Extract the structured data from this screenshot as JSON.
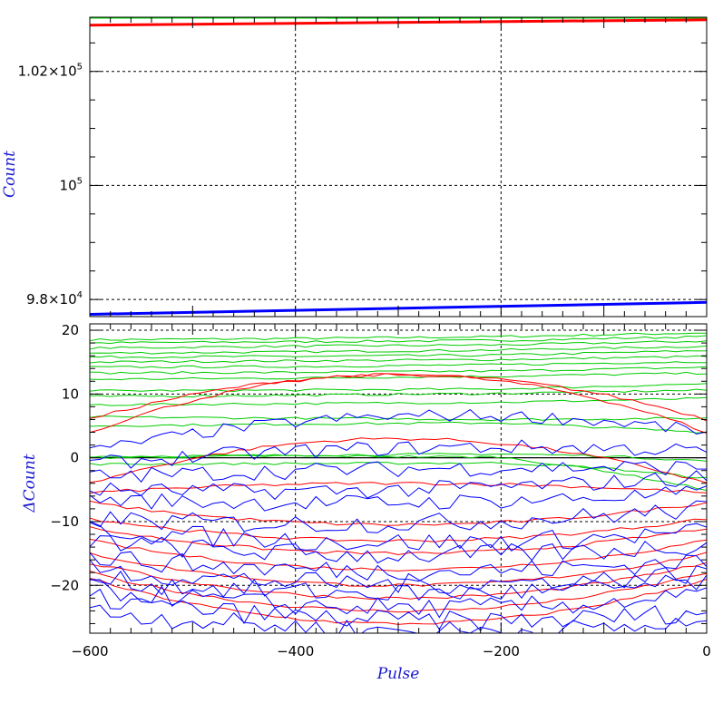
{
  "chart_data": [
    {
      "type": "line",
      "panel": "top",
      "ylabel": "Count",
      "xlim": [
        -600,
        0
      ],
      "ylim": [
        97700,
        102950
      ],
      "grid": true,
      "y_ticks": [
        {
          "value": 98000,
          "label_base": "9.8×10",
          "label_exp": "4"
        },
        {
          "value": 100000,
          "label_base": "10",
          "label_exp": "5"
        },
        {
          "value": 102000,
          "label_base": "1.02×10",
          "label_exp": "5"
        }
      ],
      "series": [
        {
          "color": "#00dd00",
          "x": [
            -600,
            -370
          ],
          "values": [
            102950,
            102950
          ]
        },
        {
          "color": "#00dd00",
          "x": [
            -370,
            0
          ],
          "values": [
            102948,
            102950
          ]
        },
        {
          "color": "#ff0000",
          "x": [
            -600,
            0
          ],
          "values": [
            102810,
            102905
          ]
        },
        {
          "color": "#0000ff",
          "x": [
            -600,
            0
          ],
          "values": [
            97740,
            97950
          ]
        }
      ]
    },
    {
      "type": "line",
      "panel": "bottom",
      "xlabel": "Pulse",
      "ylabel": "ΔCount",
      "xlim": [
        -600,
        0
      ],
      "ylim": [
        -27.5,
        21
      ],
      "grid": true,
      "x_ticks": [
        -600,
        -400,
        -200,
        0
      ],
      "y_ticks": [
        -20,
        -10,
        0,
        10,
        20
      ],
      "series_groups": [
        {
          "color": "#00cc00",
          "kind": "smooth",
          "curves": [
            [
              [
                -600,
                18.5
              ],
              [
                -400,
                18.7
              ],
              [
                -200,
                19.0
              ],
              [
                0,
                19.6
              ]
            ],
            [
              [
                -600,
                18.0
              ],
              [
                -400,
                18.2
              ],
              [
                -200,
                18.4
              ],
              [
                0,
                19.0
              ]
            ],
            [
              [
                -600,
                17.2
              ],
              [
                -400,
                17.5
              ],
              [
                -200,
                17.7
              ],
              [
                0,
                18.3
              ]
            ],
            [
              [
                -600,
                16.4
              ],
              [
                -400,
                16.6
              ],
              [
                -200,
                16.9
              ],
              [
                0,
                17.5
              ]
            ],
            [
              [
                -600,
                15.8
              ],
              [
                -400,
                15.9
              ],
              [
                -200,
                16.1
              ],
              [
                0,
                16.8
              ]
            ],
            [
              [
                -600,
                15.0
              ],
              [
                -400,
                15.2
              ],
              [
                -200,
                15.4
              ],
              [
                0,
                15.9
              ]
            ],
            [
              [
                -600,
                14.2
              ],
              [
                -400,
                14.3
              ],
              [
                -200,
                14.6
              ],
              [
                0,
                15.1
              ]
            ],
            [
              [
                -600,
                13.3
              ],
              [
                -400,
                13.4
              ],
              [
                -200,
                13.6
              ],
              [
                0,
                14.2
              ]
            ],
            [
              [
                -600,
                12.3
              ],
              [
                -400,
                12.5
              ],
              [
                -200,
                12.8
              ],
              [
                0,
                13.3
              ]
            ],
            [
              [
                -600,
                10.5
              ],
              [
                -400,
                10.6
              ],
              [
                -200,
                10.8
              ],
              [
                0,
                11.6
              ]
            ],
            [
              [
                -600,
                9.6
              ],
              [
                -400,
                9.8
              ],
              [
                -200,
                10.1
              ],
              [
                0,
                10.6
              ]
            ],
            [
              [
                -600,
                8.3
              ],
              [
                -400,
                8.5
              ],
              [
                -200,
                8.7
              ],
              [
                0,
                9.3
              ]
            ],
            [
              [
                -600,
                6.4
              ],
              [
                -400,
                6.2
              ],
              [
                -200,
                6.0
              ],
              [
                0,
                6.2
              ]
            ],
            [
              [
                -600,
                5.0
              ],
              [
                -400,
                5.3
              ],
              [
                -200,
                5.5
              ],
              [
                0,
                4.0
              ]
            ],
            [
              [
                -600,
                0.2
              ],
              [
                -400,
                0.4
              ],
              [
                -200,
                0.6
              ],
              [
                -100,
                0.3
              ],
              [
                0,
                -0.5
              ]
            ],
            [
              [
                -600,
                -1.0
              ],
              [
                -400,
                -0.9
              ],
              [
                -200,
                -0.8
              ],
              [
                -100,
                -1.6
              ],
              [
                0,
                -3.2
              ]
            ],
            [
              [
                -600,
                0.0
              ],
              [
                -400,
                0.3
              ],
              [
                -200,
                0.1
              ],
              [
                -100,
                -2.0
              ],
              [
                0,
                -5.0
              ]
            ]
          ]
        },
        {
          "color": "#ff0000",
          "kind": "arc",
          "curves": [
            {
              "center": -300,
              "base": 6.0,
              "amp": 7.0
            },
            {
              "center": -300,
              "base": 4.0,
              "amp": 9.0
            },
            {
              "center": -300,
              "base": -4.0,
              "amp": 7.0
            },
            {
              "center": -300,
              "base": -5.5,
              "amp": 1.5
            },
            {
              "center": -300,
              "base": -7.0,
              "amp": -3.5
            },
            {
              "center": -300,
              "base": -9.5,
              "amp": -3.5
            },
            {
              "center": -300,
              "base": -11.0,
              "amp": -4.0
            },
            {
              "center": -300,
              "base": -13.0,
              "amp": -4.5
            },
            {
              "center": -300,
              "base": -15.0,
              "amp": -5.0
            },
            {
              "center": -300,
              "base": -16.5,
              "amp": -5.5
            },
            {
              "center": -300,
              "base": -18.0,
              "amp": -6.0
            },
            {
              "center": -300,
              "base": -19.0,
              "amp": -7.0
            }
          ]
        },
        {
          "color": "#0000ff",
          "kind": "noisy",
          "curves": [
            {
              "start": 1.0,
              "end": 4.0,
              "bow": 4.0,
              "amp": 1.0
            },
            {
              "start": -1.0,
              "end": 1.0,
              "bow": 1.5,
              "amp": 1.2
            },
            {
              "start": -3.0,
              "end": -1.5,
              "bow": 0.5,
              "amp": 1.3
            },
            {
              "start": -5.0,
              "end": -3.0,
              "bow": -1.0,
              "amp": 1.3
            },
            {
              "start": -6.5,
              "end": -5.5,
              "bow": -1.0,
              "amp": 1.3
            },
            {
              "start": -9.5,
              "end": -8.0,
              "bow": -1.5,
              "amp": 1.5
            },
            {
              "start": -11.0,
              "end": -11.5,
              "bow": -2.0,
              "amp": 1.6
            },
            {
              "start": -13.0,
              "end": -13.5,
              "bow": -2.0,
              "amp": 1.6
            },
            {
              "start": -15.5,
              "end": -16.0,
              "bow": -2.0,
              "amp": 1.6
            },
            {
              "start": -17.5,
              "end": -18.0,
              "bow": -2.0,
              "amp": 1.6
            },
            {
              "start": -19.0,
              "end": -19.5,
              "bow": -2.0,
              "amp": 1.6
            },
            {
              "start": -20.5,
              "end": -21.5,
              "bow": -2.5,
              "amp": 1.6
            },
            {
              "start": -22.0,
              "end": -24.0,
              "bow": -2.5,
              "amp": 1.6
            },
            {
              "start": -24.0,
              "end": -26.0,
              "bow": -2.0,
              "amp": 1.6
            }
          ]
        }
      ]
    }
  ]
}
